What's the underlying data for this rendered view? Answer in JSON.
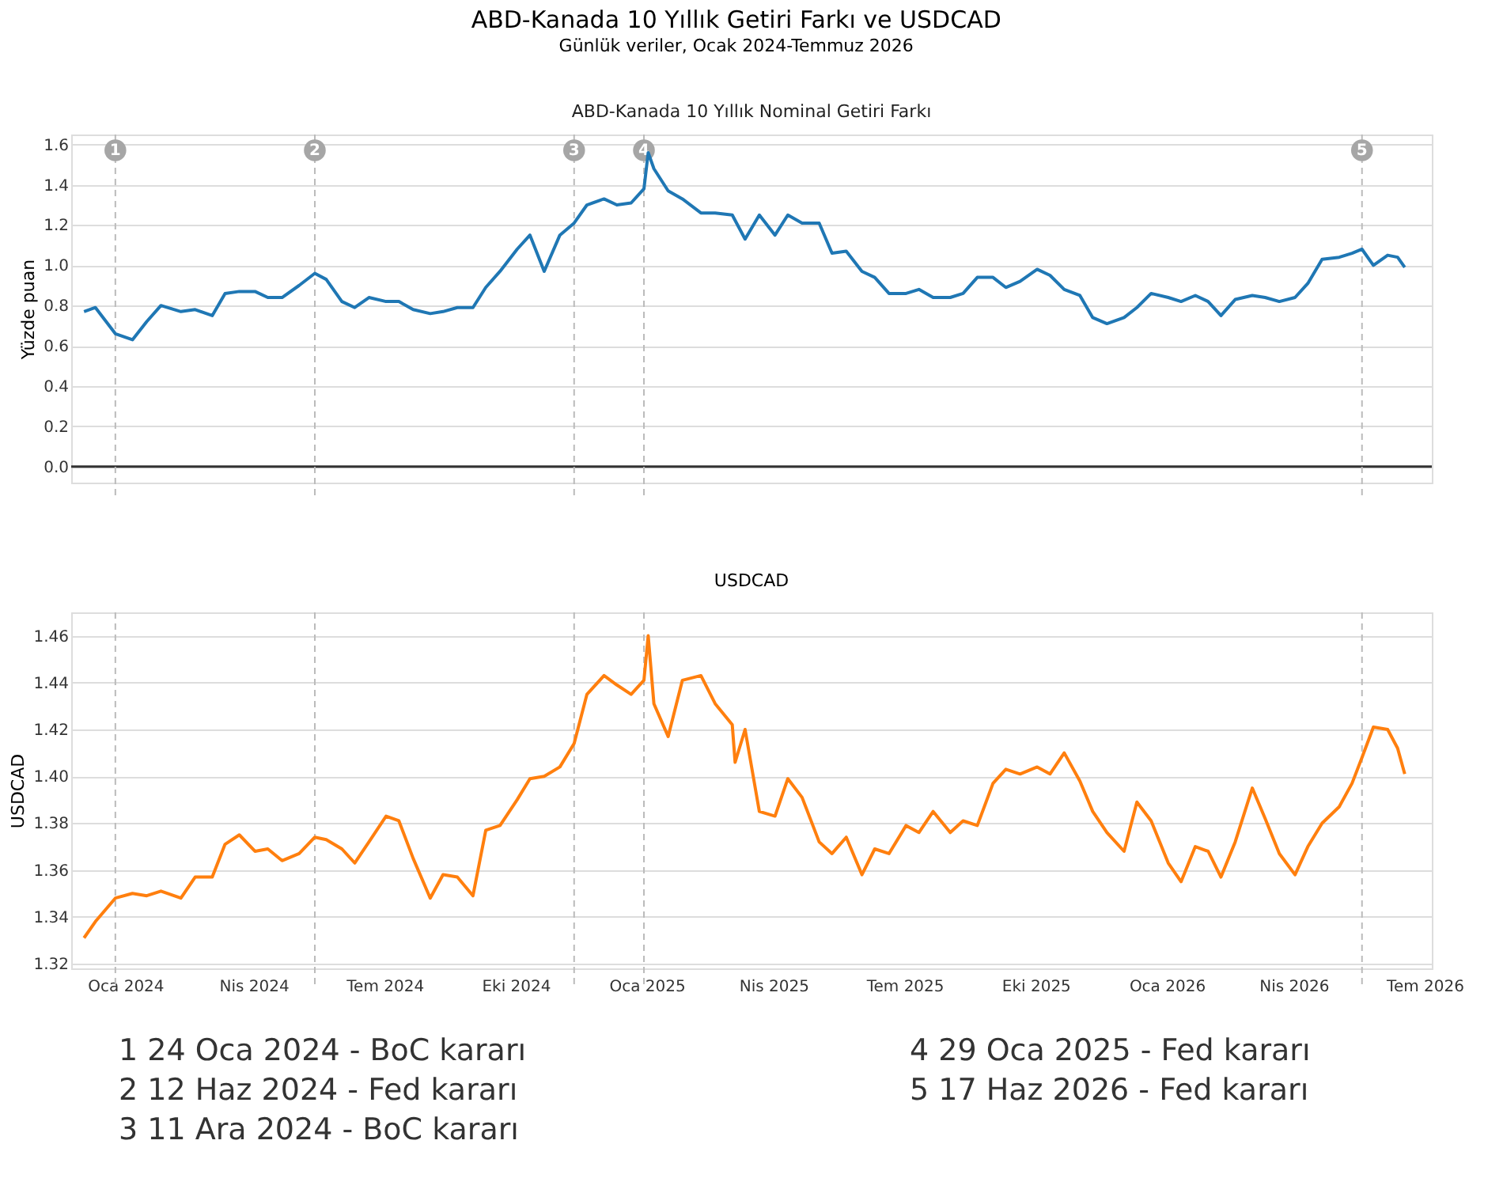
{
  "chart_data": [
    {
      "type": "line",
      "title": "ABD-Kanada 10 Yıllık Getiri Farkı ve USDCAD",
      "subtitle": "Günlük veriler, Ocak 2024-Temmuz 2026",
      "annotations": [
        "ABD-Kanada 10 Yıllık Nominal Getiri Farkı"
      ],
      "ylabel": "Yüzde puan",
      "x": [
        "2024-01-02",
        "2024-01-10",
        "2024-01-24",
        "2024-02-05",
        "2024-02-15",
        "2024-02-25",
        "2024-03-10",
        "2024-03-20",
        "2024-04-01",
        "2024-04-10",
        "2024-04-20",
        "2024-05-01",
        "2024-05-10",
        "2024-05-20",
        "2024-06-01",
        "2024-06-12",
        "2024-06-20",
        "2024-07-01",
        "2024-07-10",
        "2024-07-20",
        "2024-08-01",
        "2024-08-10",
        "2024-08-20",
        "2024-09-01",
        "2024-09-10",
        "2024-09-20",
        "2024-10-01",
        "2024-10-10",
        "2024-10-20",
        "2024-11-01",
        "2024-11-10",
        "2024-11-20",
        "2024-12-01",
        "2024-12-11",
        "2024-12-20",
        "2025-01-01",
        "2025-01-10",
        "2025-01-20",
        "2025-01-29",
        "2025-02-01",
        "2025-02-05",
        "2025-02-15",
        "2025-02-25",
        "2025-03-10",
        "2025-03-20",
        "2025-04-01",
        "2025-04-10",
        "2025-04-20",
        "2025-05-01",
        "2025-05-10",
        "2025-05-20",
        "2025-06-01",
        "2025-06-10",
        "2025-06-20",
        "2025-07-01",
        "2025-07-10",
        "2025-07-20",
        "2025-08-01",
        "2025-08-10",
        "2025-08-20",
        "2025-09-01",
        "2025-09-10",
        "2025-09-20",
        "2025-10-01",
        "2025-10-10",
        "2025-10-20",
        "2025-11-01",
        "2025-11-10",
        "2025-11-20",
        "2025-12-01",
        "2025-12-10",
        "2025-12-20",
        "2026-01-01",
        "2026-01-10",
        "2026-01-20",
        "2026-02-01",
        "2026-02-10",
        "2026-02-20",
        "2026-03-01",
        "2026-03-10",
        "2026-03-20",
        "2026-04-01",
        "2026-04-10",
        "2026-04-20",
        "2026-05-01",
        "2026-05-10",
        "2026-05-20",
        "2026-06-01",
        "2026-06-10",
        "2026-06-17",
        "2026-06-25",
        "2026-07-05",
        "2026-07-12",
        "2026-07-17"
      ],
      "series": [
        {
          "color": "#1f77b4",
          "values": [
            0.77,
            0.79,
            0.66,
            0.63,
            0.72,
            0.8,
            0.77,
            0.78,
            0.75,
            0.86,
            0.87,
            0.87,
            0.84,
            0.84,
            0.9,
            0.96,
            0.93,
            0.82,
            0.79,
            0.84,
            0.82,
            0.82,
            0.78,
            0.76,
            0.77,
            0.79,
            0.79,
            0.89,
            0.97,
            1.08,
            1.15,
            0.97,
            1.15,
            1.21,
            1.3,
            1.33,
            1.3,
            1.31,
            1.38,
            1.56,
            1.48,
            1.37,
            1.33,
            1.26,
            1.26,
            1.25,
            1.13,
            1.25,
            1.15,
            1.25,
            1.21,
            1.21,
            1.06,
            1.07,
            0.97,
            0.94,
            0.86,
            0.86,
            0.88,
            0.84,
            0.84,
            0.86,
            0.94,
            0.94,
            0.89,
            0.92,
            0.98,
            0.95,
            0.88,
            0.85,
            0.74,
            0.71,
            0.74,
            0.79,
            0.86,
            0.84,
            0.82,
            0.85,
            0.82,
            0.75,
            0.83,
            0.85,
            0.84,
            0.82,
            0.84,
            0.91,
            1.03,
            1.04,
            1.06,
            1.08,
            1.0,
            1.05,
            1.04,
            0.99
          ]
        }
      ],
      "xlim": [
        "2023-12-24",
        "2026-08-05"
      ],
      "ylim": [
        -0.08,
        1.65
      ],
      "yticks": [
        {
          "value": 0,
          "label": "0.0"
        },
        0.2,
        0.4,
        0.6,
        0.8,
        {
          "value": 1.0,
          "label": "1.0"
        },
        1.2,
        1.4,
        1.6
      ],
      "tick_labels": "y",
      "grid": "y",
      "line_style": "solid",
      "marker": "none",
      "ref_lines": [
        {
          "axis": "y",
          "value": 0,
          "color": "#333333",
          "line_style": "solid"
        },
        {
          "axis": "x",
          "value": "2024-01-24",
          "label": "1",
          "color": "#bbbbbb",
          "line_style": "dashed"
        },
        {
          "axis": "x",
          "value": "2024-06-12",
          "label": "2",
          "color": "#bbbbbb",
          "line_style": "dashed"
        },
        {
          "axis": "x",
          "value": "2024-12-11",
          "label": "3",
          "color": "#bbbbbb",
          "line_style": "dashed"
        },
        {
          "axis": "x",
          "value": "2025-01-29",
          "label": "4",
          "color": "#bbbbbb",
          "line_style": "dashed"
        },
        {
          "axis": "x",
          "value": "2026-06-17",
          "label": "5",
          "color": "#bbbbbb",
          "line_style": "dashed"
        }
      ]
    },
    {
      "type": "line",
      "title": "USDCAD",
      "ylabel": "USDCAD",
      "annotations": [
        "1  24 Oca 2024 - BoC kararı",
        "2  12 Haz 2024 - Fed kararı",
        "3  11 Ara 2024 - BoC kararı",
        "4  29 Oca 2025 - Fed kararı",
        "5  17 Haz 2026 - Fed kararı"
      ],
      "x": [
        "2024-01-02",
        "2024-01-10",
        "2024-01-24",
        "2024-02-05",
        "2024-02-15",
        "2024-02-25",
        "2024-03-10",
        "2024-03-20",
        "2024-04-01",
        "2024-04-10",
        "2024-04-20",
        "2024-05-01",
        "2024-05-10",
        "2024-05-20",
        "2024-06-01",
        "2024-06-12",
        "2024-06-20",
        "2024-07-01",
        "2024-07-10",
        "2024-07-20",
        "2024-08-01",
        "2024-08-10",
        "2024-08-20",
        "2024-09-01",
        "2024-09-10",
        "2024-09-20",
        "2024-10-01",
        "2024-10-10",
        "2024-10-20",
        "2024-11-01",
        "2024-11-10",
        "2024-11-20",
        "2024-12-01",
        "2024-12-11",
        "2024-12-20",
        "2025-01-01",
        "2025-01-10",
        "2025-01-20",
        "2025-01-29",
        "2025-02-01",
        "2025-02-05",
        "2025-02-15",
        "2025-02-25",
        "2025-03-10",
        "2025-03-20",
        "2025-04-01",
        "2025-04-03",
        "2025-04-10",
        "2025-04-20",
        "2025-05-01",
        "2025-05-10",
        "2025-05-20",
        "2025-06-01",
        "2025-06-10",
        "2025-06-20",
        "2025-07-01",
        "2025-07-10",
        "2025-07-20",
        "2025-08-01",
        "2025-08-10",
        "2025-08-20",
        "2025-09-01",
        "2025-09-10",
        "2025-09-20",
        "2025-10-01",
        "2025-10-10",
        "2025-10-20",
        "2025-11-01",
        "2025-11-10",
        "2025-11-20",
        "2025-12-01",
        "2025-12-10",
        "2025-12-20",
        "2026-01-01",
        "2026-01-10",
        "2026-01-20",
        "2026-02-01",
        "2026-02-10",
        "2026-02-20",
        "2026-03-01",
        "2026-03-10",
        "2026-03-20",
        "2026-04-01",
        "2026-04-10",
        "2026-04-20",
        "2026-05-01",
        "2026-05-10",
        "2026-05-20",
        "2026-06-01",
        "2026-06-10",
        "2026-06-17",
        "2026-06-25",
        "2026-07-05",
        "2026-07-12",
        "2026-07-17"
      ],
      "series": [
        {
          "color": "#ff7f0e",
          "values": [
            1.331,
            1.338,
            1.348,
            1.35,
            1.349,
            1.351,
            1.348,
            1.357,
            1.357,
            1.371,
            1.375,
            1.368,
            1.369,
            1.364,
            1.367,
            1.374,
            1.373,
            1.369,
            1.363,
            1.372,
            1.383,
            1.381,
            1.365,
            1.348,
            1.358,
            1.357,
            1.349,
            1.377,
            1.379,
            1.39,
            1.399,
            1.4,
            1.404,
            1.414,
            1.435,
            1.443,
            1.439,
            1.435,
            1.441,
            1.46,
            1.431,
            1.417,
            1.441,
            1.443,
            1.431,
            1.422,
            1.406,
            1.42,
            1.385,
            1.383,
            1.399,
            1.391,
            1.372,
            1.367,
            1.374,
            1.358,
            1.369,
            1.367,
            1.379,
            1.376,
            1.385,
            1.376,
            1.381,
            1.379,
            1.397,
            1.403,
            1.401,
            1.404,
            1.401,
            1.41,
            1.398,
            1.385,
            1.376,
            1.368,
            1.389,
            1.381,
            1.363,
            1.355,
            1.37,
            1.368,
            1.357,
            1.372,
            1.395,
            1.382,
            1.367,
            1.358,
            1.37,
            1.38,
            1.387,
            1.397,
            1.408,
            1.421,
            1.42,
            1.412,
            1.401
          ]
        }
      ],
      "xlim": [
        "2023-12-24",
        "2026-08-05"
      ],
      "xticks": [
        {
          "value": "2024-01-31",
          "label": "Oca 2024"
        },
        {
          "value": "2024-04-30",
          "label": "Nis 2024"
        },
        {
          "value": "2024-07-31",
          "label": "Tem 2024"
        },
        {
          "value": "2024-10-31",
          "label": "Eki 2024"
        },
        {
          "value": "2025-01-31",
          "label": "Oca 2025"
        },
        {
          "value": "2025-04-30",
          "label": "Nis 2025"
        },
        {
          "value": "2025-07-31",
          "label": "Tem 2025"
        },
        {
          "value": "2025-10-31",
          "label": "Eki 2025"
        },
        {
          "value": "2026-01-31",
          "label": "Oca 2026"
        },
        {
          "value": "2026-04-30",
          "label": "Nis 2026"
        },
        {
          "value": "2026-07-31",
          "label": "Tem 2026"
        }
      ],
      "ylim": [
        1.318,
        1.47
      ],
      "yticks": [
        1.32,
        1.34,
        1.36,
        1.38,
        {
          "value": 1.4,
          "label": "1.40"
        },
        1.42,
        1.44,
        1.46
      ],
      "grid": "y",
      "line_style": "solid",
      "marker": "none",
      "ref_lines": [
        {
          "axis": "x",
          "value": "2024-01-24",
          "color": "#bbbbbb",
          "line_style": "dashed"
        },
        {
          "axis": "x",
          "value": "2024-06-12",
          "color": "#bbbbbb",
          "line_style": "dashed"
        },
        {
          "axis": "x",
          "value": "2024-12-11",
          "color": "#bbbbbb",
          "line_style": "dashed"
        },
        {
          "axis": "x",
          "value": "2025-01-29",
          "color": "#bbbbbb",
          "line_style": "dashed"
        },
        {
          "axis": "x",
          "value": "2026-06-17",
          "color": "#bbbbbb",
          "line_style": "dashed"
        }
      ]
    }
  ]
}
